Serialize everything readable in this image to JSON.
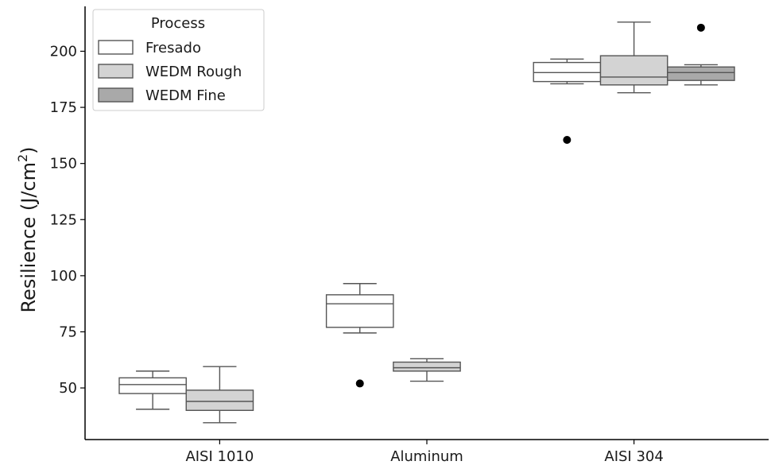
{
  "chart_data": {
    "type": "box",
    "title": "",
    "xlabel": "",
    "ylabel": "Resilience (J/cm",
    "ylabel_superscript": "2",
    "ylabel_suffix": ")",
    "ylim": [
      27,
      220
    ],
    "yticks": [
      50,
      75,
      100,
      125,
      150,
      175,
      200
    ],
    "categories": [
      "AISI 1010",
      "Aluminum",
      "AISI 304"
    ],
    "grid": false,
    "legend": {
      "title": "Process",
      "placement": "top-left",
      "entries": [
        "Fresado",
        "WEDM Rough",
        "WEDM Fine"
      ]
    },
    "series": [
      {
        "name": "Fresado",
        "color": "#ffffff",
        "boxes": [
          {
            "category": "AISI 1010",
            "whislo": 40.5,
            "q1": 47.5,
            "med": 51.5,
            "q3": 54.5,
            "whishi": 57.5,
            "fliers": []
          },
          {
            "category": "Aluminum",
            "whislo": 74.5,
            "q1": 77,
            "med": 87.5,
            "q3": 91.5,
            "whishi": 96.5,
            "fliers": [
              52
            ]
          },
          {
            "category": "AISI 304",
            "whislo": 185.5,
            "q1": 186.5,
            "med": 190.5,
            "q3": 195,
            "whishi": 196.5,
            "fliers": [
              160.5
            ]
          }
        ]
      },
      {
        "name": "WEDM Rough",
        "color": "#d3d3d3",
        "boxes": [
          {
            "category": "AISI 1010",
            "whislo": 34.5,
            "q1": 40,
            "med": 44,
            "q3": 49,
            "whishi": 59.5,
            "fliers": []
          },
          {
            "category": "Aluminum",
            "whislo": 53,
            "q1": 57.5,
            "med": 59,
            "q3": 61.5,
            "whishi": 63,
            "fliers": []
          },
          {
            "category": "AISI 304",
            "whislo": 181.5,
            "q1": 185,
            "med": 188.5,
            "q3": 198,
            "whishi": 213,
            "fliers": []
          }
        ]
      },
      {
        "name": "WEDM Fine",
        "color": "#a9a9a9",
        "boxes": [
          {
            "category": "AISI 304",
            "whislo": 185,
            "q1": 187,
            "med": 190.5,
            "q3": 193,
            "whishi": 194,
            "fliers": [
              210.5
            ]
          }
        ]
      }
    ]
  }
}
